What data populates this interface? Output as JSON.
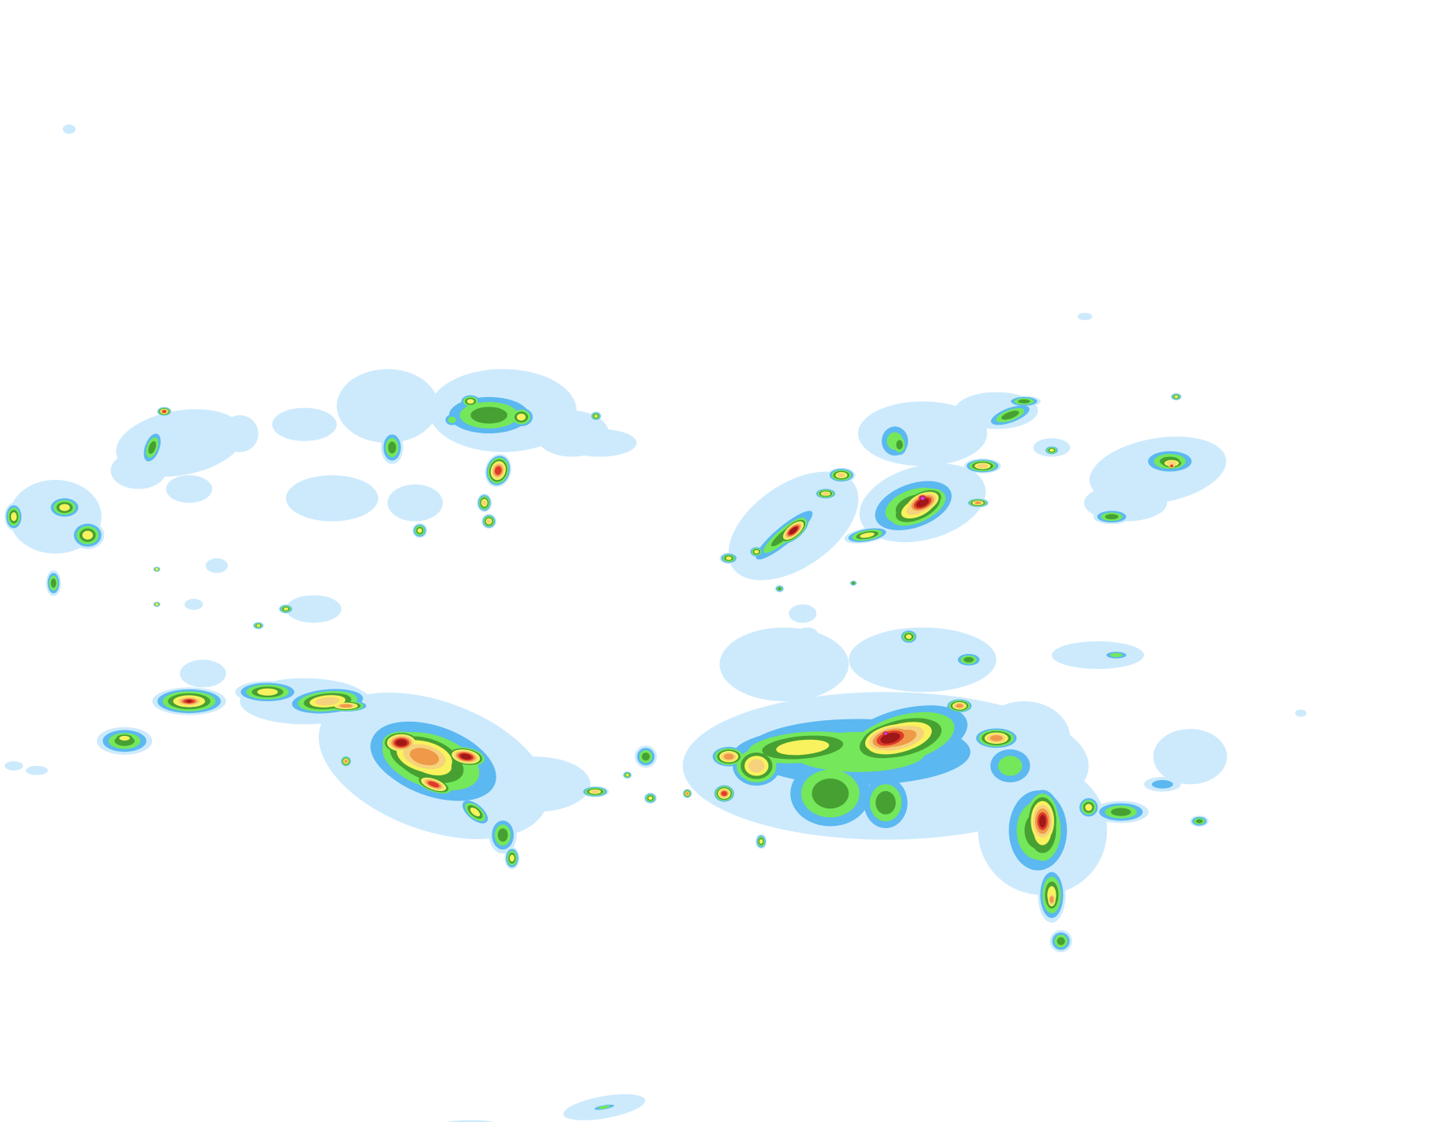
{
  "map": {
    "background_color": "#ffffff",
    "intensity_palette": [
      "#cdeafd",
      "#5bb8f0",
      "#74e85a",
      "#46a032",
      "#f8f25e",
      "#f6d27c",
      "#ee9a48",
      "#e03a2a",
      "#a01818",
      "#d838e8"
    ]
  }
}
